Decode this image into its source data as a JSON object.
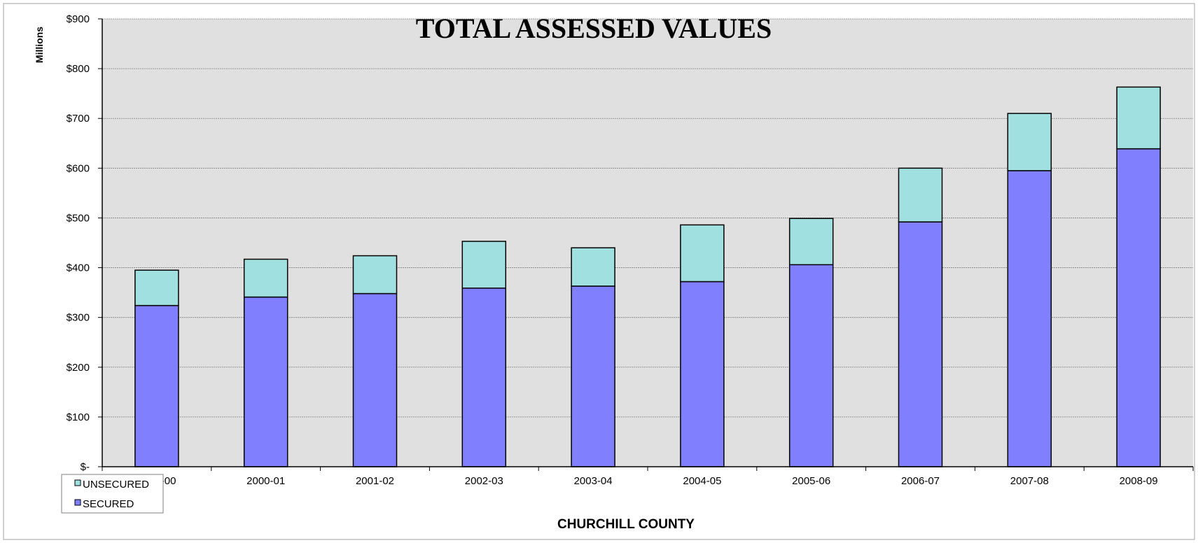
{
  "chart_data": {
    "type": "bar",
    "stacked": true,
    "title": "TOTAL ASSESSED VALUES",
    "xlabel": "CHURCHILL COUNTY",
    "ylabel": "Millions",
    "categories": [
      "1999-00",
      "2000-01",
      "2001-02",
      "2002-03",
      "2003-04",
      "2004-05",
      "2005-06",
      "2006-07",
      "2007-08",
      "2008-09"
    ],
    "series": [
      {
        "name": "SECURED",
        "color": "#8080ff",
        "values": [
          324,
          341,
          348,
          359,
          363,
          372,
          406,
          492,
          595,
          639
        ]
      },
      {
        "name": "UNSECURED",
        "color": "#a0e0e0",
        "values": [
          71,
          76,
          76,
          94,
          77,
          114,
          93,
          108,
          115,
          124
        ]
      }
    ],
    "yticks": [
      {
        "value": 0,
        "label": "$-"
      },
      {
        "value": 100,
        "label": "$100"
      },
      {
        "value": 200,
        "label": "$200"
      },
      {
        "value": 300,
        "label": "$300"
      },
      {
        "value": 400,
        "label": "$400"
      },
      {
        "value": 500,
        "label": "$500"
      },
      {
        "value": 600,
        "label": "$600"
      },
      {
        "value": 700,
        "label": "$700"
      },
      {
        "value": 800,
        "label": "$800"
      },
      {
        "value": 900,
        "label": "$900"
      }
    ],
    "ylim": [
      0,
      900
    ],
    "grid": true,
    "plot_background": "#e0e0e0",
    "legend": {
      "placement": "bottom-left",
      "entries": [
        "UNSECURED",
        "SECURED"
      ]
    }
  }
}
